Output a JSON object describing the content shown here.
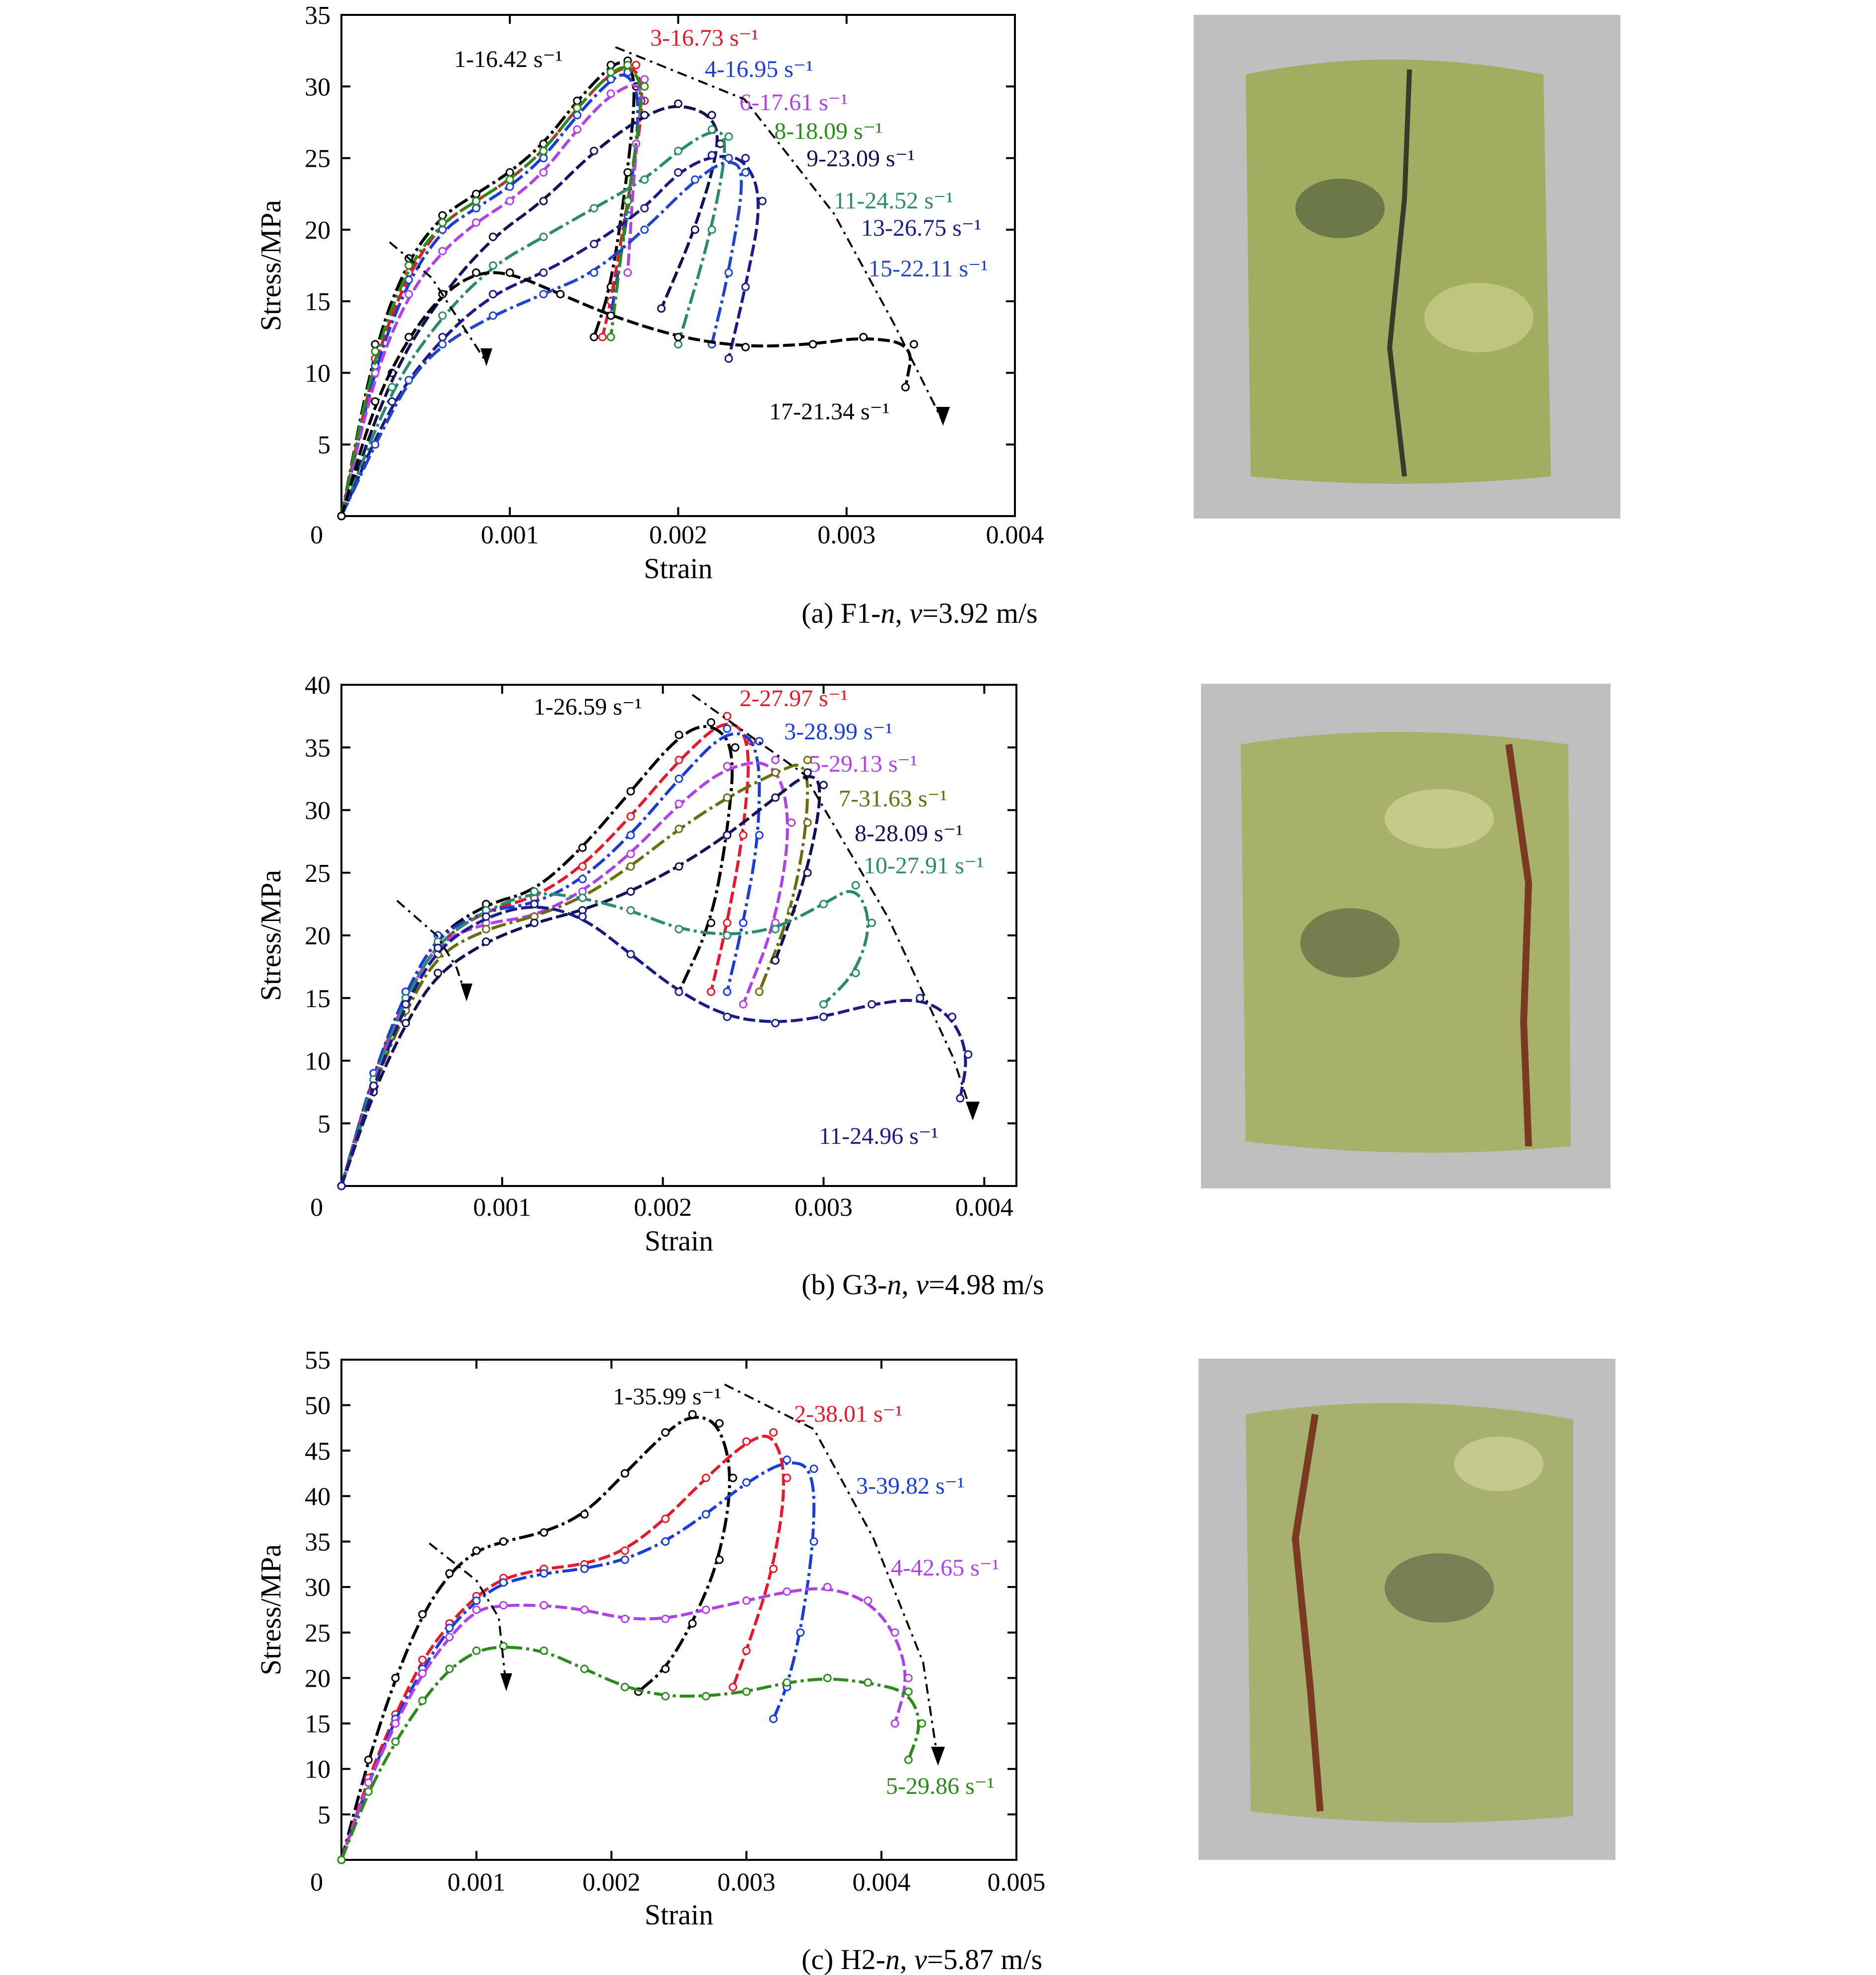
{
  "chart_data": [
    {
      "type": "line",
      "caption": "(a) F1-n, v=3.92 m/s",
      "caption_parts": {
        "prefix": "(a) F1-",
        "italic1": "n",
        "sep": ", ",
        "italic2": "v",
        "suffix": "=3.92 m/s"
      },
      "xlabel": "Strain",
      "ylabel": "Stress/MPa",
      "xlim": [
        0,
        0.004
      ],
      "ylim": [
        0,
        35
      ],
      "xticks": [
        "0",
        "0.001",
        "0.002",
        "0.003",
        "0.004"
      ],
      "yticks": [
        "5",
        "10",
        "15",
        "20",
        "25",
        "30",
        "35"
      ],
      "series": [
        {
          "name": "1-16.42 s⁻¹",
          "color": "#000000",
          "x": [
            0,
            0.0002,
            0.0004,
            0.0006,
            0.0008,
            0.001,
            0.0012,
            0.0014,
            0.0016,
            0.0017,
            0.00175,
            0.0017,
            0.0016,
            0.0015
          ],
          "y": [
            0,
            12,
            18,
            21,
            22.5,
            24,
            26,
            29,
            31.5,
            31.8,
            30,
            24,
            16,
            12.5
          ]
        },
        {
          "name": "3-16.73 s⁻¹",
          "color": "#e6192b",
          "x": [
            0,
            0.0002,
            0.0004,
            0.0006,
            0.0008,
            0.001,
            0.0012,
            0.0014,
            0.0016,
            0.00175,
            0.0018,
            0.0017,
            0.0016,
            0.00155
          ],
          "y": [
            0,
            11,
            17,
            20.5,
            22,
            23.5,
            25.5,
            28.5,
            31,
            31.5,
            29,
            22,
            15,
            12.5
          ]
        },
        {
          "name": "4-16.95 s⁻¹",
          "color": "#1a3cd8",
          "x": [
            0,
            0.0002,
            0.0004,
            0.0006,
            0.0008,
            0.001,
            0.0012,
            0.0014,
            0.0016,
            0.0017,
            0.00178,
            0.0017,
            0.0016
          ],
          "y": [
            0,
            10.5,
            16.5,
            20,
            21.5,
            23,
            25,
            28,
            30.5,
            31,
            29,
            21,
            14
          ]
        },
        {
          "name": "6-17.61 s⁻¹",
          "color": "#b041e8",
          "x": [
            0,
            0.0002,
            0.0004,
            0.0006,
            0.0008,
            0.001,
            0.0012,
            0.0014,
            0.0016,
            0.0018,
            0.00175,
            0.0017
          ],
          "y": [
            0,
            10,
            15.5,
            18.5,
            20.5,
            22,
            24,
            27,
            29.5,
            30.5,
            26,
            17
          ]
        },
        {
          "name": "8-18.09 s⁻¹",
          "color": "#2b8a1a",
          "x": [
            0,
            0.0002,
            0.0004,
            0.0006,
            0.0008,
            0.001,
            0.0012,
            0.0014,
            0.0016,
            0.0017,
            0.0018,
            0.0017,
            0.0016
          ],
          "y": [
            0,
            11.5,
            17.5,
            20.5,
            22,
            23.5,
            25.5,
            28.5,
            31,
            31.5,
            30,
            22,
            12.5
          ]
        },
        {
          "name": "9-23.09 s⁻¹",
          "color": "#111155",
          "x": [
            0,
            0.0003,
            0.0006,
            0.0009,
            0.0012,
            0.0015,
            0.0018,
            0.002,
            0.0022,
            0.00225,
            0.0021,
            0.0019
          ],
          "y": [
            0,
            10,
            15.5,
            19.5,
            22,
            25.5,
            28,
            28.8,
            28,
            26,
            20,
            14.5
          ]
        },
        {
          "name": "11-24.52 s⁻¹",
          "color": "#2a8a6a",
          "x": [
            0,
            0.0003,
            0.0006,
            0.0009,
            0.0012,
            0.0015,
            0.0018,
            0.002,
            0.0022,
            0.0023,
            0.0022,
            0.002
          ],
          "y": [
            0,
            9,
            14,
            17.5,
            19.5,
            21.5,
            23.5,
            25.5,
            27,
            26.5,
            20,
            12
          ]
        },
        {
          "name": "13-26.75 s⁻¹",
          "color": "#1a1a88",
          "x": [
            0,
            0.0003,
            0.0006,
            0.0009,
            0.0012,
            0.0015,
            0.0018,
            0.002,
            0.0022,
            0.0024,
            0.0025,
            0.0024,
            0.0023
          ],
          "y": [
            0,
            8,
            12.5,
            15.5,
            17,
            19,
            21.5,
            24,
            25.2,
            25,
            22,
            16,
            11
          ]
        },
        {
          "name": "15-22.11 s⁻¹",
          "color": "#2244cc",
          "x": [
            0,
            0.0002,
            0.0004,
            0.0006,
            0.0009,
            0.0012,
            0.0015,
            0.0018,
            0.0021,
            0.0023,
            0.0024,
            0.0023,
            0.0022
          ],
          "y": [
            0,
            5,
            9.5,
            12,
            14,
            15.5,
            17,
            20,
            23.5,
            25,
            24,
            17,
            12
          ]
        },
        {
          "name": "17-21.34 s⁻¹",
          "color": "#000000",
          "x": [
            0,
            0.0002,
            0.0004,
            0.0006,
            0.0008,
            0.001,
            0.0013,
            0.0016,
            0.002,
            0.0024,
            0.0028,
            0.0031,
            0.0034,
            0.00335
          ],
          "y": [
            0,
            8,
            12.5,
            15.5,
            17,
            17,
            15.5,
            14,
            12.5,
            11.8,
            12,
            12.5,
            12,
            9
          ]
        }
      ],
      "label_colors": [
        "#000000",
        "#e6192b",
        "#1a3cd8",
        "#b041e8",
        "#2b8a1a",
        "#111155",
        "#2a8a6a",
        "#1a1a88",
        "#2244cc",
        "#000000"
      ]
    },
    {
      "type": "line",
      "caption": "(b) G3-n, v=4.98 m/s",
      "caption_parts": {
        "prefix": "(b) G3-",
        "italic1": "n",
        "sep": ", ",
        "italic2": "v",
        "suffix": "=4.98 m/s"
      },
      "xlabel": "Strain",
      "ylabel": "Stress/MPa",
      "xlim": [
        0,
        0.0042
      ],
      "ylim": [
        0,
        40
      ],
      "xticks": [
        "0",
        "0.001",
        "0.002",
        "0.003",
        "0.004"
      ],
      "yticks": [
        "5",
        "10",
        "15",
        "20",
        "25",
        "30",
        "35",
        "40"
      ],
      "series": [
        {
          "name": "1-26.59 s⁻¹",
          "color": "#000000",
          "x": [
            0,
            0.0002,
            0.0004,
            0.0006,
            0.0009,
            0.0012,
            0.0015,
            0.0018,
            0.0021,
            0.0023,
            0.00245,
            0.0024,
            0.0023,
            0.0021
          ],
          "y": [
            0,
            9,
            15.5,
            20,
            22.5,
            23.5,
            27,
            31.5,
            36,
            37,
            35,
            28,
            21,
            15.5
          ]
        },
        {
          "name": "2-27.97 s⁻¹",
          "color": "#e6192b",
          "x": [
            0,
            0.0002,
            0.0004,
            0.0006,
            0.0009,
            0.0012,
            0.0015,
            0.0018,
            0.0021,
            0.0024,
            0.00255,
            0.0025,
            0.0024,
            0.0023
          ],
          "y": [
            0,
            9,
            15,
            19.5,
            22,
            23,
            25.5,
            29.5,
            34,
            37.5,
            35.5,
            28,
            21,
            15.5
          ]
        },
        {
          "name": "3-28.99 s⁻¹",
          "color": "#1a3cd8",
          "x": [
            0,
            0.0002,
            0.0004,
            0.0006,
            0.0009,
            0.0012,
            0.0015,
            0.0018,
            0.0021,
            0.0024,
            0.0026,
            0.0026,
            0.0025,
            0.0024
          ],
          "y": [
            0,
            9,
            15.5,
            20,
            22,
            22.5,
            24.5,
            28,
            32.5,
            36.5,
            35.5,
            28,
            21,
            15.5
          ]
        },
        {
          "name": "5-29.13 s⁻¹",
          "color": "#b041e8",
          "x": [
            0,
            0.0002,
            0.0004,
            0.0006,
            0.0009,
            0.0012,
            0.0015,
            0.0018,
            0.0021,
            0.0024,
            0.0027,
            0.0028,
            0.0027,
            0.0025
          ],
          "y": [
            0,
            8.5,
            15,
            19.5,
            21,
            21.5,
            23.5,
            26.5,
            30.5,
            33.5,
            34,
            29,
            21,
            14.5
          ]
        },
        {
          "name": "7-31.63 s⁻¹",
          "color": "#6b6b10",
          "x": [
            0,
            0.0002,
            0.0004,
            0.0006,
            0.0009,
            0.0012,
            0.0015,
            0.0018,
            0.0021,
            0.0024,
            0.0027,
            0.0029,
            0.0029,
            0.0028,
            0.0026
          ],
          "y": [
            0,
            8,
            14,
            18.5,
            20.5,
            21.5,
            23,
            25.5,
            28.5,
            31,
            33,
            34,
            29,
            22,
            15.5
          ]
        },
        {
          "name": "8-28.09 s⁻¹",
          "color": "#111155",
          "x": [
            0,
            0.0002,
            0.0004,
            0.0006,
            0.0009,
            0.0012,
            0.0015,
            0.0018,
            0.0021,
            0.0024,
            0.0027,
            0.0029,
            0.003,
            0.0029,
            0.0027
          ],
          "y": [
            0,
            7.5,
            13,
            17,
            19.5,
            21,
            22,
            23.5,
            25.5,
            28,
            31,
            33,
            32,
            25,
            18
          ]
        },
        {
          "name": "10-27.91 s⁻¹",
          "color": "#2a8a6a",
          "x": [
            0,
            0.0002,
            0.0004,
            0.0006,
            0.0009,
            0.0012,
            0.0015,
            0.0018,
            0.0021,
            0.0024,
            0.0027,
            0.003,
            0.0032,
            0.0033,
            0.0032,
            0.003
          ],
          "y": [
            0,
            8.5,
            15,
            19.5,
            22,
            23.5,
            23,
            22,
            20.5,
            20,
            20.5,
            22.5,
            24,
            21,
            17,
            14.5
          ]
        },
        {
          "name": "11-24.96 s⁻¹",
          "color": "#1a1a88",
          "x": [
            0,
            0.0002,
            0.0004,
            0.0006,
            0.0009,
            0.0012,
            0.0015,
            0.0018,
            0.0021,
            0.0024,
            0.0027,
            0.003,
            0.0033,
            0.0036,
            0.0038,
            0.0039,
            0.00385
          ],
          "y": [
            0,
            8,
            14.5,
            19,
            21.5,
            22.5,
            21.5,
            18.5,
            15.5,
            13.5,
            13,
            13.5,
            14.5,
            15,
            13.5,
            10.5,
            7
          ]
        }
      ],
      "label_colors": [
        "#000000",
        "#e6192b",
        "#1a3cd8",
        "#b041e8",
        "#6b6b10",
        "#111155",
        "#2a8a6a",
        "#1a1a88"
      ]
    },
    {
      "type": "line",
      "caption": "(c) H2-n, v=5.87 m/s",
      "caption_parts": {
        "prefix": "(c) H2-",
        "italic1": "n",
        "sep": ", ",
        "italic2": "v",
        "suffix": "=5.87 m/s"
      },
      "xlabel": "Strain",
      "ylabel": "Stress/MPa",
      "xlim": [
        0,
        0.005
      ],
      "ylim": [
        0,
        55
      ],
      "xticks": [
        "0",
        "0.001",
        "0.002",
        "0.003",
        "0.004",
        "0.005"
      ],
      "yticks": [
        "5",
        "10",
        "15",
        "20",
        "25",
        "30",
        "35",
        "40",
        "45",
        "50",
        "55"
      ],
      "series": [
        {
          "name": "1-35.99 s⁻¹",
          "color": "#000000",
          "x": [
            0,
            0.0002,
            0.0004,
            0.0006,
            0.0008,
            0.001,
            0.0012,
            0.0015,
            0.0018,
            0.0021,
            0.0024,
            0.0026,
            0.0028,
            0.0029,
            0.0028,
            0.0026,
            0.0024,
            0.0022
          ],
          "y": [
            0,
            11,
            20,
            27,
            31.5,
            34,
            35,
            36,
            38,
            42.5,
            47,
            49,
            48,
            42,
            33,
            26,
            21,
            18.5
          ]
        },
        {
          "name": "2-38.01 s⁻¹",
          "color": "#e6192b",
          "x": [
            0,
            0.0002,
            0.0004,
            0.0006,
            0.0008,
            0.001,
            0.0012,
            0.0015,
            0.0018,
            0.0021,
            0.0024,
            0.0027,
            0.003,
            0.0032,
            0.0033,
            0.0032,
            0.003,
            0.0029
          ],
          "y": [
            0,
            9,
            16,
            22,
            26,
            29,
            31,
            32,
            32.5,
            34,
            37.5,
            42,
            46,
            47,
            42,
            32,
            23,
            19
          ]
        },
        {
          "name": "3-39.82 s⁻¹",
          "color": "#1a3cd8",
          "x": [
            0,
            0.0002,
            0.0004,
            0.0006,
            0.0008,
            0.001,
            0.0012,
            0.0015,
            0.0018,
            0.0021,
            0.0024,
            0.0027,
            0.003,
            0.0033,
            0.0035,
            0.0035,
            0.0034,
            0.0033,
            0.0032
          ],
          "y": [
            0,
            8.5,
            15.5,
            21,
            25.5,
            28.5,
            30.5,
            31.5,
            32,
            33,
            35,
            38,
            41.5,
            44,
            43,
            35,
            25,
            19,
            15.5
          ]
        },
        {
          "name": "4-42.65 s⁻¹",
          "color": "#b041e8",
          "x": [
            0,
            0.0002,
            0.0004,
            0.0006,
            0.0008,
            0.001,
            0.0012,
            0.0015,
            0.0018,
            0.0021,
            0.0024,
            0.0027,
            0.003,
            0.0033,
            0.0036,
            0.0039,
            0.0041,
            0.0042,
            0.0041
          ],
          "y": [
            0,
            8.5,
            15,
            20.5,
            24.5,
            27.5,
            28,
            28,
            27.5,
            26.5,
            26.5,
            27.5,
            28.5,
            29.5,
            30,
            28.5,
            25,
            20,
            15
          ]
        },
        {
          "name": "5-29.86 s⁻¹",
          "color": "#2b8a1a",
          "x": [
            0,
            0.0002,
            0.0004,
            0.0006,
            0.0008,
            0.001,
            0.0012,
            0.0015,
            0.0018,
            0.0021,
            0.0024,
            0.0027,
            0.003,
            0.0033,
            0.0036,
            0.0039,
            0.0042,
            0.0043,
            0.0042
          ],
          "y": [
            0,
            7.5,
            13,
            17.5,
            21,
            23,
            23.5,
            23,
            21,
            19,
            18,
            18,
            18.5,
            19.5,
            20,
            19.5,
            18.5,
            15,
            11
          ]
        }
      ],
      "label_colors": [
        "#000000",
        "#e6192b",
        "#1a3cd8",
        "#b041e8",
        "#2b8a1a"
      ]
    }
  ]
}
